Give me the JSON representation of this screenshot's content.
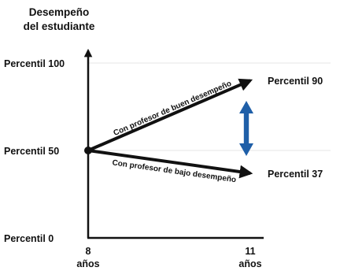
{
  "chart_data": {
    "type": "line",
    "ylabel_lines": [
      "Desempeño",
      "del estudiante"
    ],
    "y_ticks": [
      {
        "value": 100,
        "label": "Percentil 100"
      },
      {
        "value": 50,
        "label": "Percentil 50"
      },
      {
        "value": 0,
        "label": "Percentil 0"
      }
    ],
    "x_ticks": [
      {
        "value": 8,
        "line1": "8",
        "line2": "años"
      },
      {
        "value": 11,
        "line1": "11",
        "line2": "años"
      }
    ],
    "xlim": [
      8,
      11
    ],
    "ylim": [
      0,
      100
    ],
    "series": [
      {
        "name": "Con profesor de buen desempeño",
        "x": [
          8,
          11
        ],
        "y": [
          50,
          90
        ],
        "end_label": "Percentil 90"
      },
      {
        "name": "Con profesor de bajo desempeño",
        "x": [
          8,
          11
        ],
        "y": [
          50,
          37
        ],
        "end_label": "Percentil 37"
      }
    ],
    "gap_arrow": {
      "color": "#1f5fa8",
      "from": 90,
      "to": 37
    },
    "grid_lines": [
      100,
      50
    ],
    "grid": true,
    "line_color": "#111111",
    "grid_color": "#e6e6e6"
  }
}
